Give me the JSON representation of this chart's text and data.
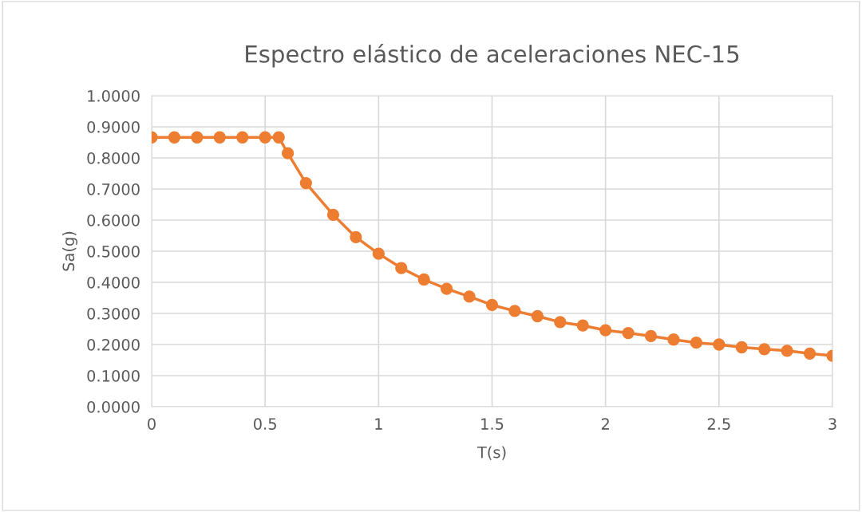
{
  "chart_data": {
    "type": "line",
    "title": "Espectro elástico de aceleraciones NEC-15",
    "xlabel": "T(s)",
    "ylabel": "Sa(g)",
    "x": [
      0,
      0.1,
      0.2,
      0.3,
      0.4,
      0.5,
      0.56,
      0.6,
      0.68,
      0.8,
      0.9,
      1.0,
      1.1,
      1.2,
      1.3,
      1.4,
      1.5,
      1.6,
      1.7,
      1.8,
      1.9,
      2.0,
      2.1,
      2.2,
      2.3,
      2.4,
      2.5,
      2.6,
      2.7,
      2.8,
      2.9,
      3.0
    ],
    "series": [
      {
        "color": "#ed7d31",
        "values": [
          0.866,
          0.866,
          0.866,
          0.866,
          0.866,
          0.866,
          0.866,
          0.815,
          0.719,
          0.617,
          0.545,
          0.492,
          0.446,
          0.409,
          0.379,
          0.354,
          0.327,
          0.308,
          0.291,
          0.272,
          0.261,
          0.246,
          0.237,
          0.227,
          0.216,
          0.206,
          0.2,
          0.191,
          0.185,
          0.18,
          0.171,
          0.164
        ]
      }
    ],
    "xlim": [
      0,
      3
    ],
    "xticks": [
      0,
      0.5,
      1,
      1.5,
      2,
      2.5,
      3
    ],
    "ylim": [
      0,
      1
    ],
    "yticks": [
      {
        "value": 0,
        "label": "0.0000"
      },
      {
        "value": 0.1,
        "label": "0.1000"
      },
      {
        "value": 0.2,
        "label": "0.2000"
      },
      {
        "value": 0.3,
        "label": "0.3000"
      },
      {
        "value": 0.4,
        "label": "0.4000"
      },
      {
        "value": 0.5,
        "label": "0.5000"
      },
      {
        "value": 0.6,
        "label": "0.6000"
      },
      {
        "value": 0.7,
        "label": "0.7000"
      },
      {
        "value": 0.8,
        "label": "0.8000"
      },
      {
        "value": 0.9,
        "label": "0.9000"
      },
      {
        "value": 1,
        "label": "1.0000"
      }
    ],
    "grid": true,
    "marker": "circle",
    "line_style": "solid",
    "legend": false
  }
}
